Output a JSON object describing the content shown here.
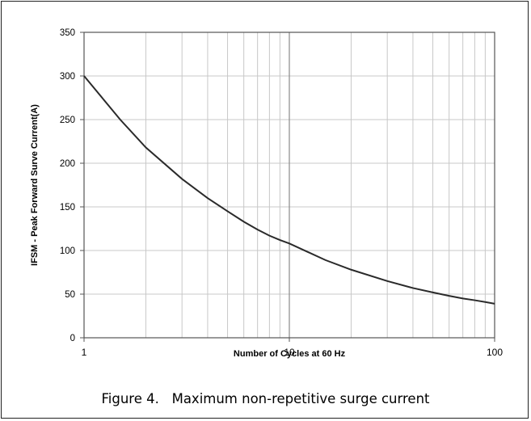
{
  "chart_data": {
    "type": "line",
    "xscale": "log",
    "xlim": [
      1,
      100
    ],
    "ylim": [
      0,
      350
    ],
    "x_ticks": [
      1,
      10,
      100
    ],
    "x_tick_labels": [
      "1",
      "10",
      "100"
    ],
    "y_ticks": [
      0,
      50,
      100,
      150,
      200,
      250,
      300,
      350
    ],
    "y_tick_labels": [
      "0",
      "50",
      "100",
      "150",
      "200",
      "250",
      "300",
      "350"
    ],
    "xlabel": "Number of Cycles at 60 Hz",
    "ylabel": "IFSM - Peak Forward Surve Current(A)",
    "grid": true,
    "series": [
      {
        "x": [
          1,
          1.5,
          2,
          3,
          4,
          5,
          6,
          7,
          8,
          9,
          10,
          15,
          20,
          30,
          40,
          50,
          60,
          70,
          80,
          90,
          100
        ],
        "values": [
          300,
          250,
          218,
          182,
          160,
          145,
          133,
          124,
          117,
          112,
          108,
          89,
          78,
          65,
          57,
          52,
          48,
          45,
          43,
          41,
          39
        ]
      }
    ]
  },
  "caption": "Figure 4.   Maximum non-repetitive surge current"
}
